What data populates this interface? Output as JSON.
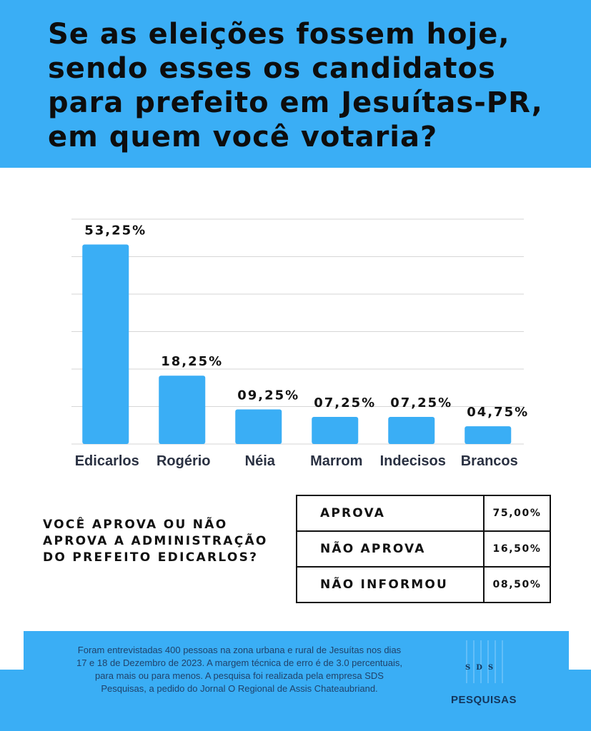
{
  "header": {
    "title": "Se as eleições fossem hoje,\nsendo esses os candidatos\npara prefeito em Jesuítas-PR,\nem quem você votaria?"
  },
  "chart_data": {
    "type": "bar",
    "categories": [
      "Edicarlos",
      "Rogério",
      "Néia",
      "Marrom",
      "Indecisos",
      "Brancos"
    ],
    "values": [
      53.25,
      18.25,
      9.25,
      7.25,
      7.25,
      4.75
    ],
    "value_labels": [
      "53,25%",
      "18,25%",
      "09,25%",
      "07,25%",
      "07,25%",
      "04,75%"
    ],
    "ylim": [
      0,
      60
    ],
    "grid": true,
    "bar_color": "#3aaef5",
    "grid_color": "#d6d6d6"
  },
  "approval": {
    "question": "VOCÊ APROVA OU NÃO\n APROVA A ADMINISTRAÇÃO\nDO PREFEITO EDICARLOS?",
    "rows": [
      {
        "option": "APROVA",
        "value": "75,00%"
      },
      {
        "option": "NÃO APROVA",
        "value": "16,50%"
      },
      {
        "option": "NÃO INFORMOU",
        "value": "08,50%"
      }
    ]
  },
  "footer": {
    "note": "Foram entrevistadas 400 pessoas na zona urbana e rural de Jesuítas nos dias\n17 e 18 de Dezembro de 2023. A margem técnica de erro é de 3.0 percentuais,\npara mais ou para menos. A pesquisa foi realizada pela empresa SDS\nPesquisas, a pedido do Jornal O Regional de Assis Chateaubriand.",
    "logo_letters": "SDS",
    "logo_word": "PESQUISAS"
  },
  "colors": {
    "accent": "#3aaef5",
    "text": "#111111",
    "footer_text": "#20426a"
  }
}
